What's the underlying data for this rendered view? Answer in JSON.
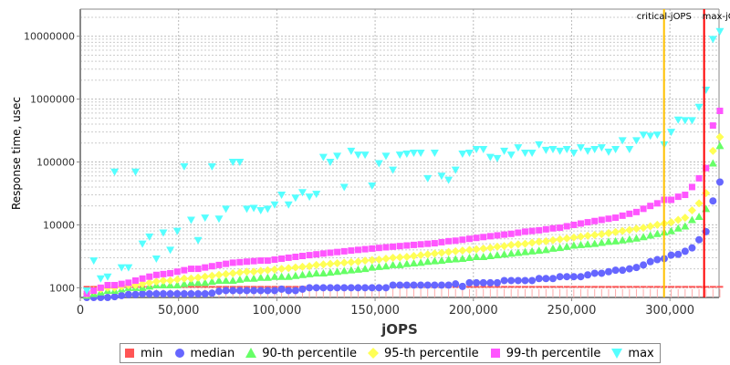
{
  "chart_data": {
    "type": "scatter",
    "title": "",
    "xlabel": "jOPS",
    "ylabel": "Response time, usec",
    "yscale": "log",
    "xlim": [
      0,
      325000
    ],
    "ylim": [
      700,
      27000000
    ],
    "xticks": [
      {
        "v": 0,
        "label": "0"
      },
      {
        "v": 50000,
        "label": "50,000"
      },
      {
        "v": 100000,
        "label": "100,000"
      },
      {
        "v": 150000,
        "label": "150,000"
      },
      {
        "v": 200000,
        "label": "200,000"
      },
      {
        "v": 250000,
        "label": "250,000"
      },
      {
        "v": 300000,
        "label": "300,000"
      }
    ],
    "yticks": [
      {
        "v": 1000,
        "label": "1000"
      },
      {
        "v": 10000,
        "label": "10000"
      },
      {
        "v": 100000,
        "label": "100000"
      },
      {
        "v": 1000000,
        "label": "1000000"
      },
      {
        "v": 10000000,
        "label": "10000000"
      }
    ],
    "grid": true,
    "legend_position": "bottom",
    "x_start": 3300,
    "x_step": 3540,
    "markers": [
      {
        "name": "critical-jOPS",
        "x": 297000,
        "color": "#FFC000"
      },
      {
        "name": "max-jOPS",
        "x": 317400,
        "color": "#FF0000"
      }
    ],
    "series": [
      {
        "name": "min",
        "color": "#FF5555",
        "shape": "square",
        "values": [
          950,
          950,
          950,
          950,
          950,
          950,
          950,
          950,
          950,
          950,
          950,
          950,
          950,
          950,
          950,
          950,
          950,
          950,
          950,
          950,
          950,
          950,
          950,
          950,
          950,
          950,
          950,
          950,
          950,
          950,
          950,
          950,
          950,
          950,
          950,
          950,
          950,
          950,
          950,
          950,
          950,
          950,
          950,
          950,
          950,
          950,
          950,
          950,
          950,
          950,
          950,
          950,
          950,
          950,
          950,
          950,
          950,
          950,
          950,
          950,
          950,
          950,
          950,
          950,
          950,
          950,
          950,
          950,
          950,
          950,
          950,
          950,
          950,
          950,
          950,
          950,
          950,
          950,
          950,
          950,
          950,
          950,
          950,
          950,
          950,
          950,
          950,
          950,
          950,
          950,
          950,
          950
        ]
      },
      {
        "name": "median",
        "color": "#6666FF",
        "shape": "circle",
        "values": [
          700,
          700,
          700,
          700,
          720,
          750,
          780,
          780,
          800,
          800,
          800,
          800,
          800,
          800,
          800,
          800,
          800,
          800,
          820,
          880,
          900,
          900,
          900,
          900,
          900,
          900,
          900,
          900,
          950,
          900,
          900,
          950,
          1000,
          1000,
          1000,
          1000,
          1000,
          1000,
          1000,
          1000,
          1000,
          1000,
          1000,
          1000,
          1100,
          1100,
          1100,
          1100,
          1100,
          1100,
          1100,
          1100,
          1100,
          1150,
          1050,
          1200,
          1200,
          1200,
          1200,
          1200,
          1300,
          1300,
          1300,
          1300,
          1300,
          1400,
          1400,
          1400,
          1500,
          1500,
          1500,
          1500,
          1600,
          1700,
          1700,
          1800,
          1900,
          1900,
          2000,
          2100,
          2300,
          2600,
          2800,
          2900,
          3300,
          3400,
          3800,
          4300,
          5800,
          7800,
          24000,
          48000
        ]
      },
      {
        "name": "90-th percentile",
        "color": "#66FF66",
        "shape": "triangle",
        "values": [
          750,
          800,
          850,
          900,
          900,
          950,
          1000,
          1000,
          1000,
          1050,
          1100,
          1100,
          1100,
          1100,
          1150,
          1200,
          1200,
          1200,
          1250,
          1300,
          1300,
          1300,
          1350,
          1400,
          1400,
          1450,
          1450,
          1500,
          1500,
          1500,
          1550,
          1600,
          1650,
          1700,
          1700,
          1750,
          1800,
          1850,
          1900,
          1950,
          2000,
          2100,
          2150,
          2200,
          2300,
          2300,
          2400,
          2450,
          2500,
          2600,
          2650,
          2700,
          2800,
          2850,
          2900,
          3000,
          3100,
          3100,
          3200,
          3300,
          3400,
          3500,
          3600,
          3700,
          3800,
          3900,
          4000,
          4200,
          4300,
          4500,
          4700,
          4800,
          4900,
          5000,
          5200,
          5400,
          5500,
          5700,
          5900,
          6100,
          6400,
          6800,
          7200,
          7600,
          8000,
          8800,
          9500,
          12000,
          13500,
          18000,
          95000,
          180000
        ]
      },
      {
        "name": "95-th percentile",
        "color": "#FFFF55",
        "shape": "diamond",
        "values": [
          800,
          900,
          950,
          1000,
          1000,
          1050,
          1100,
          1100,
          1150,
          1200,
          1250,
          1300,
          1300,
          1350,
          1400,
          1400,
          1450,
          1500,
          1550,
          1600,
          1650,
          1700,
          1750,
          1800,
          1800,
          1850,
          1900,
          1950,
          2000,
          2050,
          2100,
          2150,
          2200,
          2300,
          2350,
          2400,
          2450,
          2500,
          2550,
          2600,
          2700,
          2750,
          2800,
          2900,
          3000,
          3050,
          3100,
          3200,
          3300,
          3400,
          3500,
          3600,
          3700,
          3800,
          3900,
          4000,
          4100,
          4200,
          4300,
          4500,
          4600,
          4800,
          4900,
          5000,
          5200,
          5400,
          5500,
          5700,
          5900,
          6100,
          6300,
          6500,
          6700,
          6900,
          7100,
          7400,
          7700,
          8000,
          8300,
          8700,
          9000,
          9500,
          10000,
          10500,
          11000,
          12000,
          13000,
          17000,
          22000,
          32000,
          150000,
          250000
        ]
      },
      {
        "name": "99-th percentile",
        "color": "#FF55FF",
        "shape": "square",
        "values": [
          800,
          900,
          1000,
          1100,
          1100,
          1150,
          1200,
          1300,
          1400,
          1500,
          1600,
          1650,
          1700,
          1800,
          1900,
          2000,
          2000,
          2100,
          2200,
          2300,
          2400,
          2500,
          2550,
          2600,
          2650,
          2700,
          2700,
          2800,
          2900,
          3000,
          3100,
          3200,
          3300,
          3400,
          3500,
          3600,
          3700,
          3800,
          3900,
          4000,
          4100,
          4200,
          4300,
          4400,
          4500,
          4600,
          4700,
          4800,
          4900,
          5000,
          5100,
          5300,
          5500,
          5600,
          5800,
          6000,
          6200,
          6400,
          6600,
          6800,
          7000,
          7200,
          7500,
          7800,
          8000,
          8200,
          8500,
          8800,
          9000,
          9500,
          10000,
          10500,
          11000,
          11500,
          12000,
          12500,
          13000,
          14000,
          15000,
          16000,
          18000,
          20000,
          22000,
          25000,
          25000,
          28000,
          30000,
          40000,
          55000,
          80000,
          380000,
          650000
        ]
      },
      {
        "name": "max",
        "color": "#55FFFF",
        "shape": "triangle-down",
        "values": [
          900,
          2700,
          1400,
          1500,
          70000,
          2100,
          2100,
          70000,
          5000,
          6500,
          2900,
          7500,
          4000,
          8000,
          85000,
          12000,
          5700,
          13000,
          85000,
          12500,
          18000,
          100000,
          100000,
          18000,
          18500,
          17000,
          18000,
          21000,
          30000,
          21000,
          27000,
          33000,
          28000,
          31000,
          120000,
          100000,
          125000,
          40000,
          150000,
          130000,
          130000,
          42000,
          95000,
          125000,
          75000,
          130000,
          135000,
          140000,
          140000,
          55000,
          140000,
          60000,
          52000,
          75000,
          135000,
          140000,
          160000,
          160000,
          120000,
          115000,
          150000,
          130000,
          170000,
          140000,
          140000,
          190000,
          155000,
          160000,
          150000,
          160000,
          140000,
          170000,
          150000,
          160000,
          170000,
          145000,
          160000,
          220000,
          160000,
          220000,
          270000,
          260000,
          270000,
          190000,
          300000,
          470000,
          460000,
          460000,
          750000,
          1400000,
          9000000,
          12000000
        ]
      }
    ]
  }
}
